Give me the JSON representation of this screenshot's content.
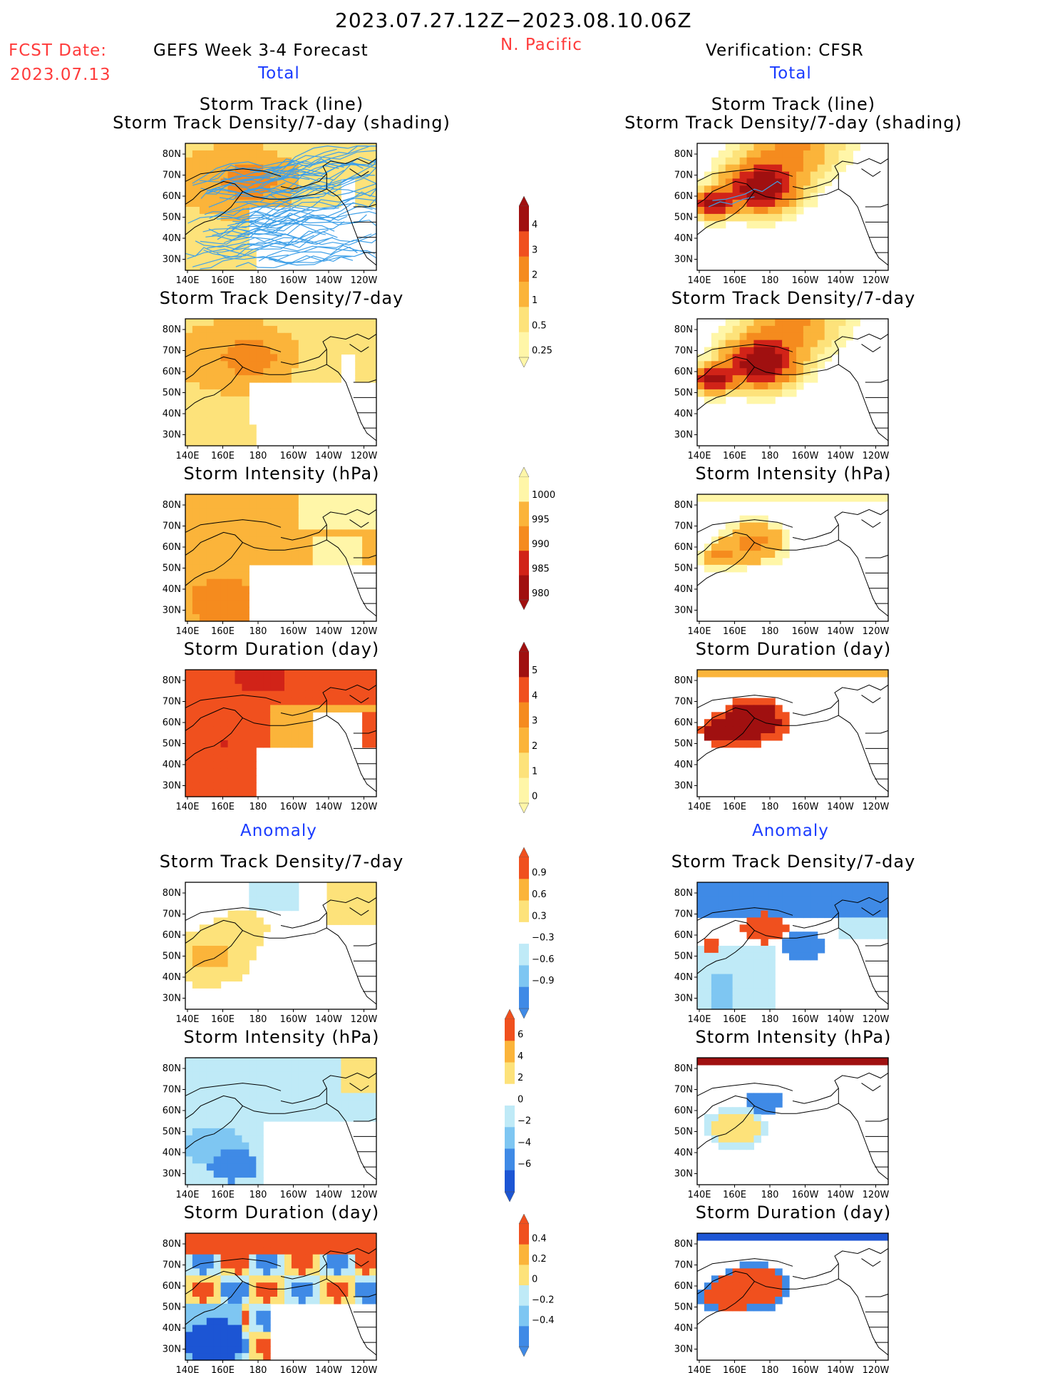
{
  "header": {
    "period": "2023.07.27.12Z−2023.08.10.06Z",
    "fcst_label": "FCST Date:",
    "fcst_date": "2023.07.13",
    "forecast_label": "GEFS Week 3-4 Forecast",
    "region": "N. Pacific",
    "verification_label": "Verification: CFSR",
    "total_left": "Total",
    "total_right": "Total",
    "anomaly_left": "Anomaly",
    "anomaly_right": "Anomaly"
  },
  "titles": {
    "track_line": "Storm Track (line)",
    "track_shading": "Storm Track Density/7-day (shading)",
    "density": "Storm Track Density/7-day",
    "intensity": "Storm Intensity (hPa)",
    "duration": "Storm Duration (day)"
  },
  "axes": {
    "lat_ticks": [
      "80N",
      "70N",
      "60N",
      "50N",
      "40N",
      "30N"
    ],
    "lon_ticks": [
      "140E",
      "160E",
      "180",
      "160W",
      "140W",
      "120W"
    ]
  },
  "colors": {
    "yellow1": "#fff6a8",
    "yellow2": "#fde27a",
    "orange1": "#fbb43a",
    "orange2": "#f58b1e",
    "red1": "#f0501e",
    "red2": "#d12318",
    "darkred": "#a01010",
    "lblue1": "#bfeaf7",
    "lblue2": "#7ec6f2",
    "blue1": "#3f8ae6",
    "blue2": "#1c55d4",
    "track_line": "#3fa0e8"
  },
  "chart_data": [
    {
      "type": "heatmap",
      "id": "colorbar-density",
      "levels": [
        "4",
        "3",
        "2",
        "1",
        "0.5",
        "0.25"
      ],
      "colors": [
        "darkred",
        "red1",
        "orange2",
        "orange1",
        "yellow2",
        "yellow1"
      ]
    },
    {
      "type": "heatmap",
      "id": "colorbar-intensity",
      "levels": [
        "1000",
        "995",
        "990",
        "985",
        "980"
      ],
      "colors": [
        "yellow1",
        "orange1",
        "orange2",
        "red2",
        "darkred"
      ]
    },
    {
      "type": "heatmap",
      "id": "colorbar-duration",
      "levels": [
        "5",
        "4",
        "3",
        "2",
        "1",
        "0"
      ],
      "colors": [
        "darkred",
        "red1",
        "orange2",
        "orange1",
        "yellow2",
        "yellow1"
      ]
    },
    {
      "type": "heatmap",
      "id": "colorbar-density-anom",
      "levels": [
        "0.9",
        "0.6",
        "0.3",
        "−0.3",
        "−0.6",
        "−0.9"
      ],
      "colors": [
        "red1",
        "orange1",
        "yellow2",
        "white",
        "lblue1",
        "lblue2",
        "blue1"
      ]
    },
    {
      "type": "heatmap",
      "id": "colorbar-intensity-anom",
      "levels": [
        "6",
        "4",
        "2",
        "0",
        "−2",
        "−4",
        "−6"
      ],
      "colors": [
        "red1",
        "orange1",
        "yellow2",
        "white",
        "lblue1",
        "lblue2",
        "blue1",
        "blue2"
      ]
    },
    {
      "type": "heatmap",
      "id": "colorbar-duration-anom",
      "levels": [
        "0.4",
        "0.2",
        "0",
        "−0.2",
        "−0.4"
      ],
      "colors": [
        "red1",
        "orange1",
        "yellow2",
        "lblue1",
        "lblue2",
        "blue1"
      ]
    }
  ]
}
